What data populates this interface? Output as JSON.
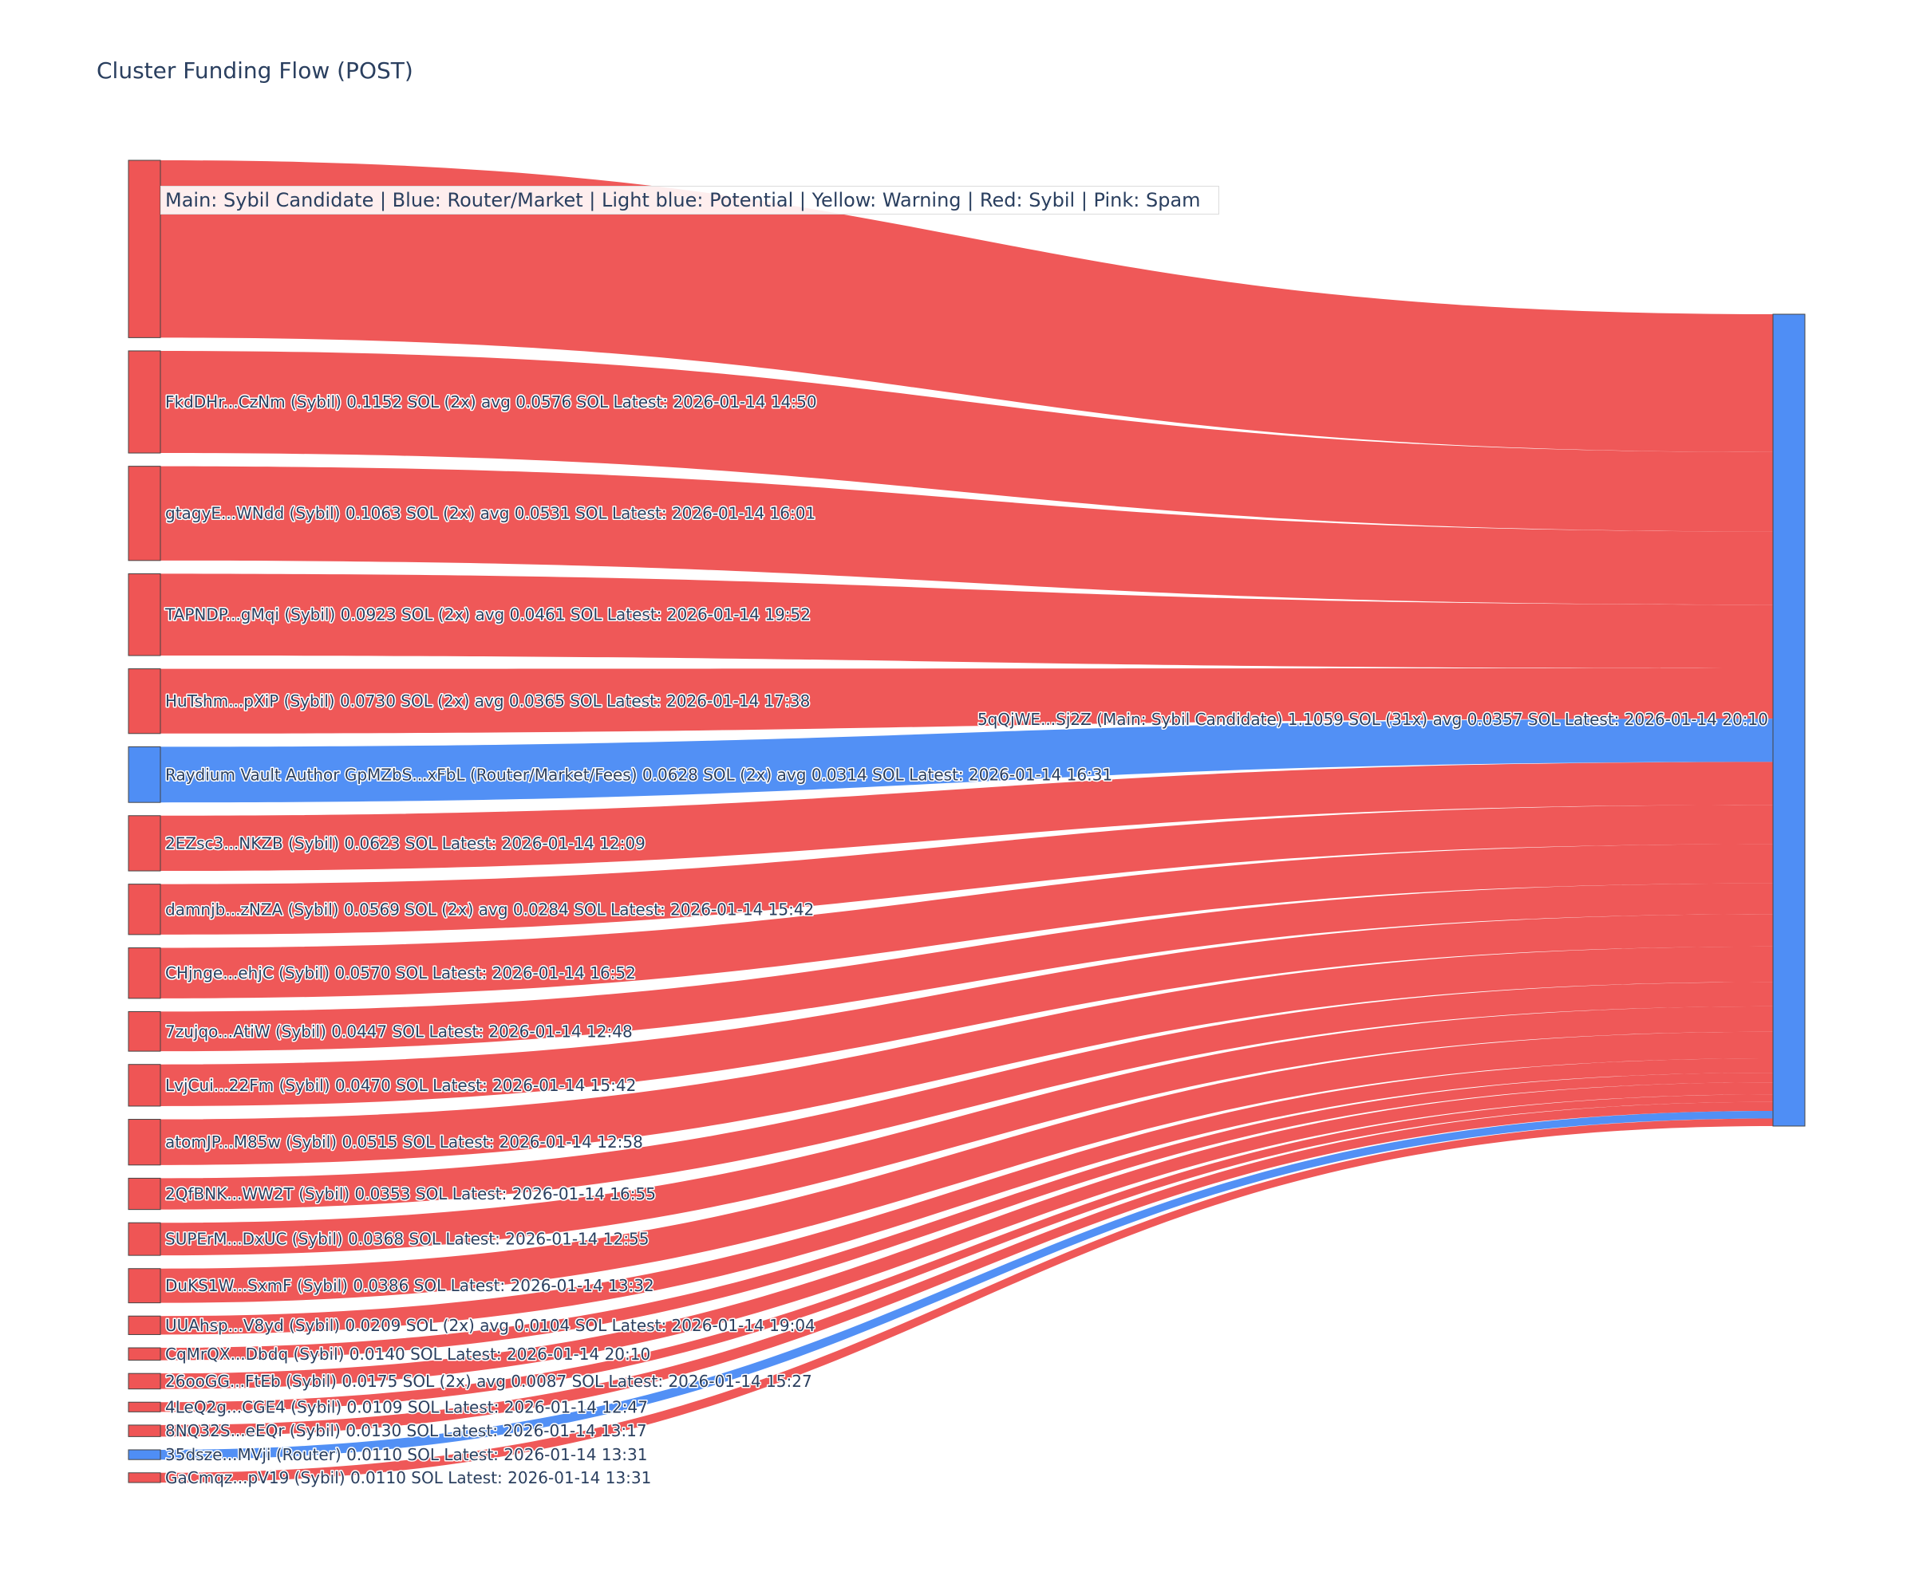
{
  "title": "Cluster Funding Flow (POST)",
  "legend_text": "Main: Sybil Candidate  |  Blue: Router/Market | Light blue: Potential | Yellow: Warning | Red: Sybil | Pink: Spam",
  "colors": {
    "sybil": "#ef5555",
    "router": "#4f8ef5"
  },
  "chart_data": {
    "type": "sankey",
    "unit": "SOL",
    "target": {
      "id": "5qQjWE...Sj2Z",
      "label": "5qQjWE...Sj2Z (Main: Sybil Candidate) 1.1059 SOL (31x) avg 0.0357 SOL Latest: 2026-01-14 20:10",
      "value": 1.1059,
      "category": "router"
    },
    "sources": [
      {
        "id": "top-source",
        "label": "",
        "value": 0.2,
        "category": "sybil"
      },
      {
        "id": "FkdDHr...CzNm",
        "label": "FkdDHr...CzNm (Sybil) 0.1152 SOL (2x) avg 0.0576 SOL Latest: 2026-01-14 14:50",
        "value": 0.1152,
        "category": "sybil"
      },
      {
        "id": "gtagyE...WNdd",
        "label": "gtagyE...WNdd (Sybil) 0.1063 SOL (2x) avg 0.0531 SOL Latest: 2026-01-14 16:01",
        "value": 0.1063,
        "category": "sybil"
      },
      {
        "id": "TAPNDP...gMqi",
        "label": "TAPNDP...gMqi (Sybil) 0.0923 SOL (2x) avg 0.0461 SOL Latest: 2026-01-14 19:52",
        "value": 0.0923,
        "category": "sybil"
      },
      {
        "id": "HuTshm...pXiP",
        "label": "HuTshm...pXiP (Sybil) 0.0730 SOL (2x) avg 0.0365 SOL Latest: 2026-01-14 17:38",
        "value": 0.073,
        "category": "sybil"
      },
      {
        "id": "GpMZbS...xFbL",
        "label": "Raydium Vault Author GpMZbS...xFbL (Router/Market/Fees) 0.0628 SOL (2x) avg 0.0314 SOL Latest: 2026-01-14 16:31",
        "value": 0.0628,
        "category": "router"
      },
      {
        "id": "2EZsc3...NKZB",
        "label": "2EZsc3...NKZB (Sybil) 0.0623 SOL Latest: 2026-01-14 12:09",
        "value": 0.0623,
        "category": "sybil"
      },
      {
        "id": "damnjb...zNZA",
        "label": "damnjb...zNZA (Sybil) 0.0569 SOL (2x) avg 0.0284 SOL Latest: 2026-01-14 15:42",
        "value": 0.0569,
        "category": "sybil"
      },
      {
        "id": "CHjnge...ehjC",
        "label": "CHjnge...ehjC (Sybil) 0.0570 SOL Latest: 2026-01-14 16:52",
        "value": 0.057,
        "category": "sybil"
      },
      {
        "id": "7zujqo...AtiW",
        "label": "7zujqo...AtiW (Sybil) 0.0447 SOL Latest: 2026-01-14 12:48",
        "value": 0.0447,
        "category": "sybil"
      },
      {
        "id": "LvjCui...22Fm",
        "label": "LvjCui...22Fm (Sybil) 0.0470 SOL Latest: 2026-01-14 15:42",
        "value": 0.047,
        "category": "sybil"
      },
      {
        "id": "atomJP...M85w",
        "label": "atomJP...M85w (Sybil) 0.0515 SOL Latest: 2026-01-14 12:58",
        "value": 0.0515,
        "category": "sybil"
      },
      {
        "id": "2QfBNK...WW2T",
        "label": "2QfBNK...WW2T (Sybil) 0.0353 SOL Latest: 2026-01-14 16:55",
        "value": 0.0353,
        "category": "sybil"
      },
      {
        "id": "SUPErM...DxUC",
        "label": "SUPErM...DxUC (Sybil) 0.0368 SOL Latest: 2026-01-14 12:55",
        "value": 0.0368,
        "category": "sybil"
      },
      {
        "id": "DuKS1W...SxmF",
        "label": "DuKS1W...SxmF (Sybil) 0.0386 SOL Latest: 2026-01-14 13:32",
        "value": 0.0386,
        "category": "sybil"
      },
      {
        "id": "UUAhsp...V8yd",
        "label": "UUAhsp...V8yd (Sybil) 0.0209 SOL (2x) avg 0.0104 SOL Latest: 2026-01-14 19:04",
        "value": 0.0209,
        "category": "sybil"
      },
      {
        "id": "CqMrQX...Dbdq",
        "label": "CqMrQX...Dbdq (Sybil) 0.0140 SOL Latest: 2026-01-14 20:10",
        "value": 0.014,
        "category": "sybil"
      },
      {
        "id": "26ooGG...FtEb",
        "label": "26ooGG...FtEb (Sybil) 0.0175 SOL (2x) avg 0.0087 SOL Latest: 2026-01-14 15:27",
        "value": 0.0175,
        "category": "sybil"
      },
      {
        "id": "4LeQ2g...CGE4",
        "label": "4LeQ2g...CGE4 (Sybil) 0.0109 SOL Latest: 2026-01-14 12:47",
        "value": 0.0109,
        "category": "sybil"
      },
      {
        "id": "8NQ32S...eEQr",
        "label": "8NQ32S...eEQr (Sybil) 0.0130 SOL Latest: 2026-01-14 13:17",
        "value": 0.013,
        "category": "sybil"
      },
      {
        "id": "35dsze...MVji",
        "label": "35dsze...MVji (Router) 0.0110 SOL Latest: 2026-01-14 13:31",
        "value": 0.011,
        "category": "router"
      },
      {
        "id": "GaCmqz...pV19",
        "label": "GaCmqz...pV19 (Sybil) 0.0110 SOL Latest: 2026-01-14 13:31",
        "value": 0.011,
        "category": "sybil"
      }
    ]
  }
}
